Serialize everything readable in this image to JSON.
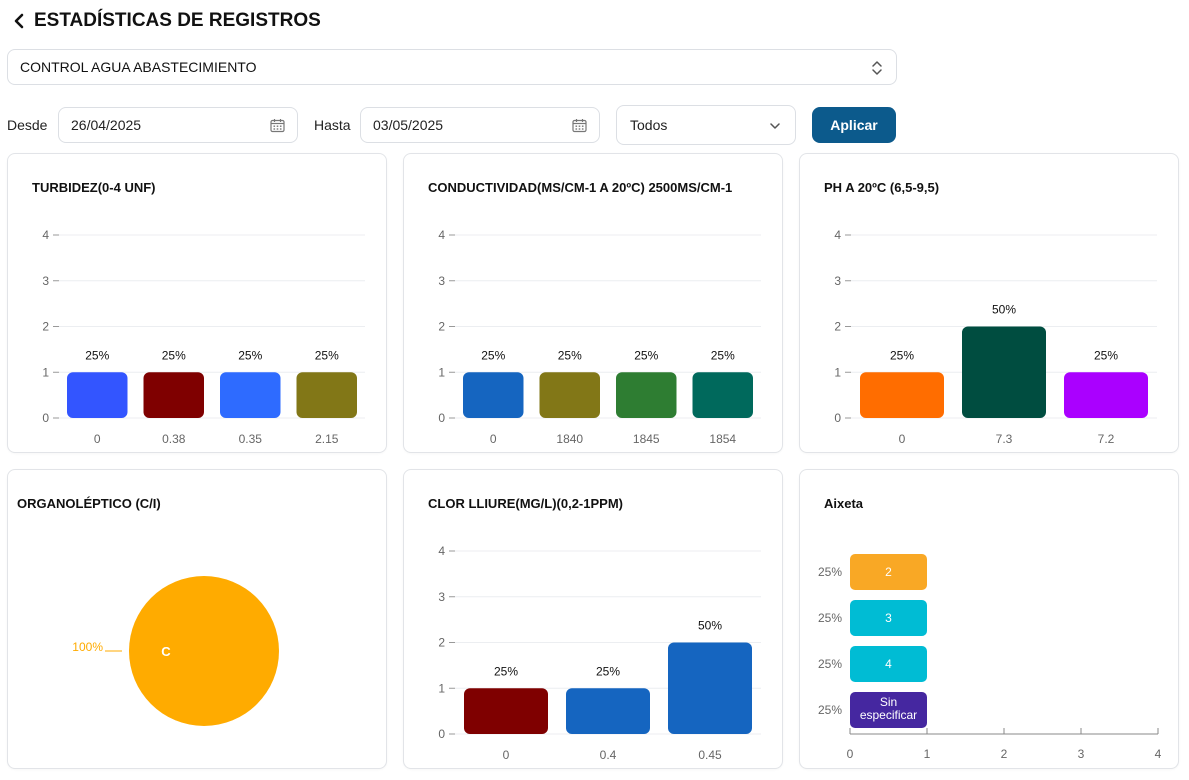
{
  "header": {
    "title": "ESTADÍSTICAS DE REGISTROS",
    "back_icon": "chevron-left-icon"
  },
  "selector": {
    "value": "CONTROL AGUA ABASTECIMIENTO",
    "icon": "chevron-up-down-icon"
  },
  "filters": {
    "from_label": "Desde",
    "from_value": "26/04/2025",
    "to_label": "Hasta",
    "to_value": "03/05/2025",
    "calendar_icon": "calendar-icon",
    "type_value": "Todos",
    "apply_label": "Aplicar"
  },
  "colors": {
    "accent": "#0c5a8c",
    "pie": "#ffab00"
  },
  "chart_data": [
    {
      "type": "bar",
      "title": "TURBIDEZ(0-4 UNF)",
      "categories": [
        "0",
        "0.38",
        "0.35",
        "2.15"
      ],
      "values": [
        1,
        1,
        1,
        1
      ],
      "labels": [
        "25%",
        "25%",
        "25%",
        "25%"
      ],
      "colors": [
        "#3355ff",
        "#7f0000",
        "#2e6bff",
        "#827717"
      ],
      "ylim": [
        0,
        4
      ],
      "yticks": [
        "0",
        "1",
        "2",
        "3",
        "4"
      ],
      "grid": true
    },
    {
      "type": "bar",
      "title": "CONDUCTIVIDAD(MS/CM-1 A 20ºC) 2500MS/CM-1",
      "categories": [
        "0",
        "1840",
        "1845",
        "1854"
      ],
      "values": [
        1,
        1,
        1,
        1
      ],
      "labels": [
        "25%",
        "25%",
        "25%",
        "25%"
      ],
      "colors": [
        "#1565c0",
        "#827717",
        "#2e7d32",
        "#00695c"
      ],
      "ylim": [
        0,
        4
      ],
      "yticks": [
        "0",
        "1",
        "2",
        "3",
        "4"
      ],
      "grid": true
    },
    {
      "type": "bar",
      "title": "PH A 20ºC (6,5-9,5)",
      "categories": [
        "0",
        "7.3",
        "7.2"
      ],
      "values": [
        1,
        2,
        1
      ],
      "labels": [
        "25%",
        "50%",
        "25%"
      ],
      "colors": [
        "#ff6d00",
        "#004d40",
        "#aa00ff"
      ],
      "ylim": [
        0,
        4
      ],
      "yticks": [
        "0",
        "1",
        "2",
        "3",
        "4"
      ],
      "grid": true
    },
    {
      "type": "pie",
      "title": "ORGANOLÉPTICO (C/I)",
      "slices": [
        {
          "label": "C",
          "value": 100,
          "percent_label": "100%",
          "color": "#ffab00"
        }
      ]
    },
    {
      "type": "bar",
      "title": "CLOR LLIURE(MG/L)(0,2-1PPM)",
      "categories": [
        "0",
        "0.4",
        "0.45"
      ],
      "values": [
        1,
        1,
        2
      ],
      "labels": [
        "25%",
        "25%",
        "50%"
      ],
      "colors": [
        "#7f0000",
        "#1565c0",
        "#1565c0"
      ],
      "ylim": [
        0,
        4
      ],
      "yticks": [
        "0",
        "1",
        "2",
        "3",
        "4"
      ],
      "grid": true
    },
    {
      "type": "hbar",
      "title": "Aixeta",
      "categories": [
        "2",
        "3",
        "4",
        "Sin especificar"
      ],
      "values": [
        1,
        1,
        1,
        1
      ],
      "labels": [
        "25%",
        "25%",
        "25%",
        "25%"
      ],
      "colors": [
        "#f9a825",
        "#00bcd4",
        "#00bcd4",
        "#4527a0"
      ],
      "xlim": [
        0,
        4
      ],
      "xticks": [
        "0",
        "1",
        "2",
        "3",
        "4"
      ],
      "grid": false
    }
  ]
}
